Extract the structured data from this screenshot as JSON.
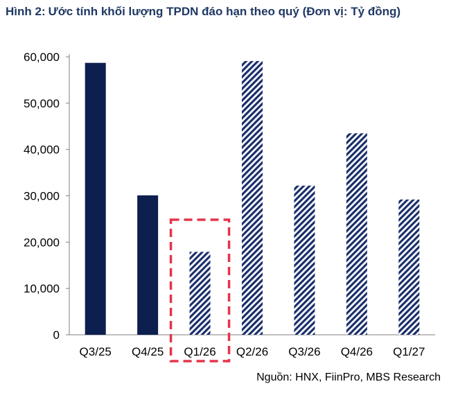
{
  "figure": {
    "label": "Hình 2:",
    "title": "Ước tính khối lượng TPDN đáo hạn theo quý (Đơn vị: Tỷ đồng)",
    "source": "Nguồn: HNX, FiinPro, MBS Research"
  },
  "colors": {
    "actual": "#0d1f4f",
    "hatch": "#1a2f6b",
    "highlight": "#e5344b",
    "title": "#1f3864"
  },
  "chart_data": {
    "type": "bar",
    "title": "Ước tính khối lượng TPDN đáo hạn theo quý (Đơn vị: Tỷ đồng)",
    "categories": [
      "Q3/25",
      "Q4/25",
      "Q1/26",
      "Q2/26",
      "Q3/26",
      "Q4/26",
      "Q1/27"
    ],
    "values": [
      58700,
      30100,
      17900,
      59100,
      32200,
      43500,
      29200
    ],
    "fill_style": [
      "solid",
      "solid",
      "hatched",
      "hatched",
      "hatched",
      "hatched",
      "hatched"
    ],
    "highlighted_category": "Q1/26",
    "ylim": [
      0,
      60000
    ],
    "yticks": [
      0,
      10000,
      20000,
      30000,
      40000,
      50000,
      60000
    ],
    "ytick_labels": [
      "0",
      "10,000",
      "20,000",
      "30,000",
      "40,000",
      "50,000",
      "60,000"
    ],
    "grid": false,
    "legend": "none"
  }
}
